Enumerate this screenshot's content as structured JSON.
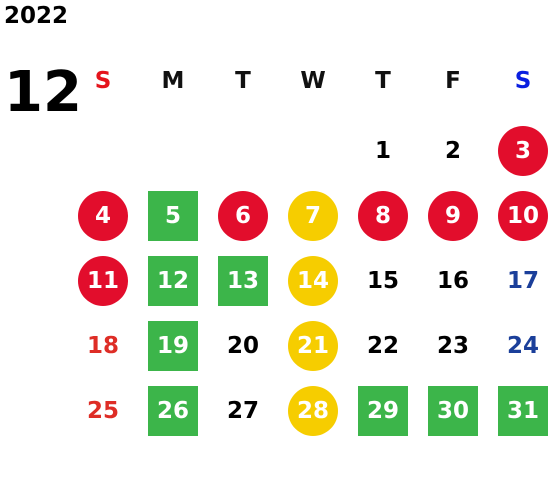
{
  "calendar": {
    "year": "2022",
    "month": "12",
    "weekdays": [
      "S",
      "M",
      "T",
      "W",
      "T",
      "F",
      "S"
    ],
    "days": [
      {
        "label": "1",
        "col": 4,
        "row": 0,
        "style": "plain"
      },
      {
        "label": "2",
        "col": 5,
        "row": 0,
        "style": "plain"
      },
      {
        "label": "3",
        "col": 6,
        "row": 0,
        "style": "circle-red"
      },
      {
        "label": "4",
        "col": 0,
        "row": 1,
        "style": "circle-red"
      },
      {
        "label": "5",
        "col": 1,
        "row": 1,
        "style": "square-green"
      },
      {
        "label": "6",
        "col": 2,
        "row": 1,
        "style": "circle-red"
      },
      {
        "label": "7",
        "col": 3,
        "row": 1,
        "style": "circle-yellow"
      },
      {
        "label": "8",
        "col": 4,
        "row": 1,
        "style": "circle-red"
      },
      {
        "label": "9",
        "col": 5,
        "row": 1,
        "style": "circle-red"
      },
      {
        "label": "10",
        "col": 6,
        "row": 1,
        "style": "circle-red"
      },
      {
        "label": "11",
        "col": 0,
        "row": 2,
        "style": "circle-red"
      },
      {
        "label": "12",
        "col": 1,
        "row": 2,
        "style": "square-green"
      },
      {
        "label": "13",
        "col": 2,
        "row": 2,
        "style": "square-green"
      },
      {
        "label": "14",
        "col": 3,
        "row": 2,
        "style": "circle-yellow"
      },
      {
        "label": "15",
        "col": 4,
        "row": 2,
        "style": "plain"
      },
      {
        "label": "16",
        "col": 5,
        "row": 2,
        "style": "plain"
      },
      {
        "label": "17",
        "col": 6,
        "row": 2,
        "style": "sat"
      },
      {
        "label": "18",
        "col": 0,
        "row": 3,
        "style": "sun"
      },
      {
        "label": "19",
        "col": 1,
        "row": 3,
        "style": "square-green"
      },
      {
        "label": "20",
        "col": 2,
        "row": 3,
        "style": "plain"
      },
      {
        "label": "21",
        "col": 3,
        "row": 3,
        "style": "circle-yellow"
      },
      {
        "label": "22",
        "col": 4,
        "row": 3,
        "style": "plain"
      },
      {
        "label": "23",
        "col": 5,
        "row": 3,
        "style": "plain"
      },
      {
        "label": "24",
        "col": 6,
        "row": 3,
        "style": "sat"
      },
      {
        "label": "25",
        "col": 0,
        "row": 4,
        "style": "sun"
      },
      {
        "label": "26",
        "col": 1,
        "row": 4,
        "style": "square-green"
      },
      {
        "label": "27",
        "col": 2,
        "row": 4,
        "style": "plain"
      },
      {
        "label": "28",
        "col": 3,
        "row": 4,
        "style": "circle-yellow"
      },
      {
        "label": "29",
        "col": 4,
        "row": 4,
        "style": "square-green"
      },
      {
        "label": "30",
        "col": 5,
        "row": 4,
        "style": "square-green"
      },
      {
        "label": "31",
        "col": 6,
        "row": 4,
        "style": "square-green"
      }
    ]
  },
  "colors": {
    "red": "#e20d2c",
    "yellow": "#f6cd00",
    "green": "#3cb54a",
    "sunday_text": "#de2d26",
    "saturday_text": "#1b3f9a"
  }
}
